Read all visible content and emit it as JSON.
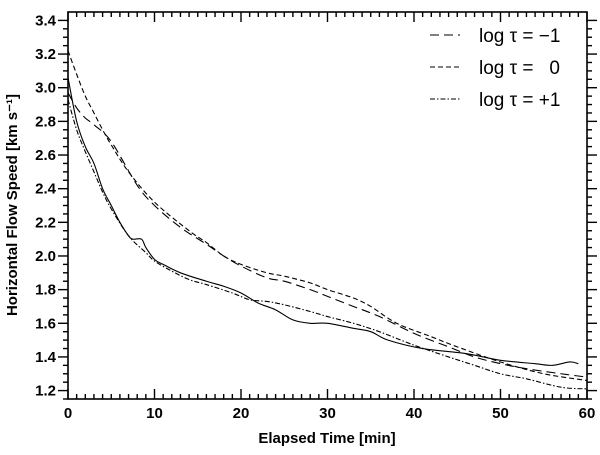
{
  "chart_data": {
    "type": "line",
    "title": "",
    "xlabel": "Elapsed Time   [min]",
    "ylabel": "Horizontal Flow Speed   [km s⁻¹]",
    "xlim": [
      0,
      60
    ],
    "ylim": [
      1.15,
      3.45
    ],
    "xticks": [
      0,
      10,
      20,
      30,
      40,
      50,
      60
    ],
    "xtick_labels": [
      "0",
      "10",
      "20",
      "30",
      "40",
      "50",
      "60"
    ],
    "yticks": [
      1.2,
      1.4,
      1.6,
      1.8,
      2.0,
      2.2,
      2.4,
      2.6,
      2.8,
      3.0,
      3.2,
      3.4
    ],
    "ytick_labels": [
      "1.2",
      "1.4",
      "1.6",
      "1.8",
      "2.0",
      "2.2",
      "2.4",
      "2.6",
      "2.8",
      "3.0",
      "3.2",
      "3.4"
    ],
    "grid": false,
    "legend_placement": "top-right",
    "series": [
      {
        "style": "solid",
        "color": "#000000",
        "x": [
          0,
          1,
          2,
          3,
          4,
          5,
          6,
          7,
          7.5,
          8.5,
          9,
          10,
          11,
          13,
          16,
          18,
          20,
          22,
          24,
          26,
          28,
          30,
          33,
          35,
          37,
          41,
          46,
          50,
          54,
          56,
          58,
          59
        ],
        "y": [
          3.06,
          2.8,
          2.65,
          2.55,
          2.4,
          2.3,
          2.2,
          2.12,
          2.1,
          2.1,
          2.05,
          1.98,
          1.95,
          1.9,
          1.85,
          1.82,
          1.78,
          1.72,
          1.68,
          1.62,
          1.6,
          1.6,
          1.57,
          1.55,
          1.5,
          1.45,
          1.42,
          1.38,
          1.36,
          1.35,
          1.37,
          1.36
        ]
      },
      {
        "name": "log τ = −1",
        "style": "long-dash",
        "color": "#000000",
        "x": [
          0,
          1,
          2,
          3,
          5,
          8,
          10,
          13,
          16,
          18,
          20,
          23,
          25,
          28,
          30,
          33,
          36,
          40,
          44,
          47,
          50,
          53,
          57,
          60
        ],
        "y": [
          2.97,
          2.88,
          2.82,
          2.78,
          2.68,
          2.42,
          2.3,
          2.17,
          2.07,
          2.0,
          1.94,
          1.87,
          1.85,
          1.8,
          1.76,
          1.7,
          1.64,
          1.54,
          1.46,
          1.4,
          1.36,
          1.33,
          1.3,
          1.28
        ]
      },
      {
        "name": "log τ =   0",
        "style": "short-dash",
        "color": "#000000",
        "x": [
          0,
          1,
          2,
          3,
          4,
          5,
          7,
          10,
          14,
          16,
          18,
          20,
          23,
          25,
          28,
          30,
          33,
          35,
          38,
          42,
          45,
          50,
          55,
          60
        ],
        "y": [
          3.22,
          3.08,
          2.95,
          2.85,
          2.75,
          2.66,
          2.5,
          2.32,
          2.15,
          2.08,
          2.0,
          1.95,
          1.9,
          1.88,
          1.84,
          1.8,
          1.75,
          1.7,
          1.6,
          1.52,
          1.46,
          1.37,
          1.3,
          1.26
        ]
      },
      {
        "name": "log τ = +1",
        "style": "dash-dot",
        "color": "#000000",
        "x": [
          0,
          1,
          2,
          3,
          4,
          5,
          7,
          9,
          10,
          12,
          14,
          16,
          19,
          21,
          23,
          25,
          28,
          30,
          33,
          36,
          40,
          44,
          47,
          50,
          53,
          57,
          60
        ],
        "y": [
          2.93,
          2.75,
          2.62,
          2.5,
          2.38,
          2.28,
          2.12,
          2.02,
          1.97,
          1.91,
          1.86,
          1.83,
          1.78,
          1.74,
          1.73,
          1.71,
          1.67,
          1.64,
          1.6,
          1.55,
          1.47,
          1.4,
          1.35,
          1.3,
          1.27,
          1.22,
          1.21
        ]
      }
    ]
  }
}
